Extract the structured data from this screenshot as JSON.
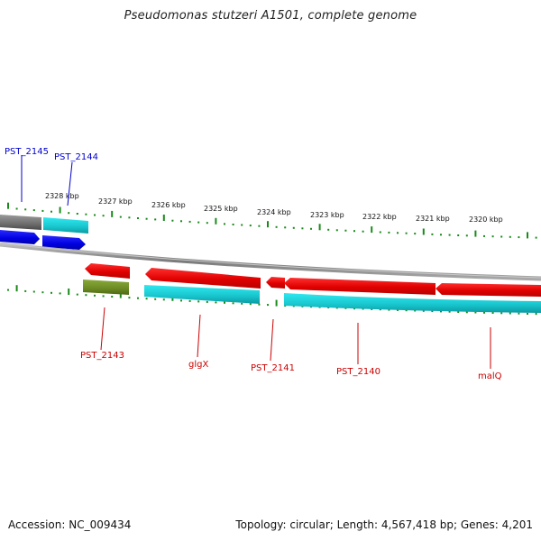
{
  "title": "Pseudomonas stutzeri A1501, complete genome",
  "footer": {
    "accession": "Accession: NC_009434",
    "summary": "Topology: circular; Length: 4,567,418 bp; Genes: 4,201"
  },
  "ruler_labels": [
    "2328 kbp",
    "2327 kbp",
    "2326 kbp",
    "2325 kbp",
    "2324 kbp",
    "2323 kbp",
    "2322 kbp",
    "2321 kbp",
    "2320 kbp"
  ],
  "genes": [
    {
      "label": "PST_2145",
      "strand": "forward",
      "color": "#0000cc"
    },
    {
      "label": "PST_2144",
      "strand": "forward",
      "color": "#0000cc"
    },
    {
      "label": "PST_2143",
      "strand": "reverse",
      "color": "#cc0000"
    },
    {
      "label": "glgX",
      "strand": "reverse",
      "color": "#cc0000"
    },
    {
      "label": "PST_2141",
      "strand": "reverse",
      "color": "#cc0000"
    },
    {
      "label": "PST_2140",
      "strand": "reverse",
      "color": "#cc0000"
    },
    {
      "label": "malQ",
      "strand": "reverse",
      "color": "#cc0000"
    }
  ],
  "colors": {
    "backbone": "#8a8a8a",
    "forward_gene": "#1010e0",
    "reverse_gene": "#e01010",
    "cyan_feature": "#20c8d0",
    "olive_feature": "#6b8a22",
    "gray_feature": "#6e6e6e",
    "tick": "#1a8a1a"
  }
}
